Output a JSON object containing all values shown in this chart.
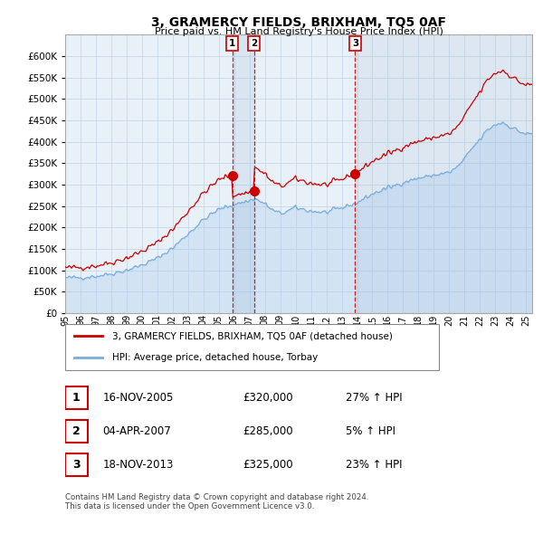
{
  "title": "3, GRAMERCY FIELDS, BRIXHAM, TQ5 0AF",
  "subtitle": "Price paid vs. HM Land Registry's House Price Index (HPI)",
  "ylim": [
    0,
    650000
  ],
  "hpi_color": "#7aadda",
  "hpi_fill_color": "#ddeeff",
  "price_color": "#cc0000",
  "transactions": [
    {
      "num": 1,
      "date": "16-NOV-2005",
      "price": 320000,
      "pct": "27%",
      "dir": "↑",
      "x_year": 2005.88
    },
    {
      "num": 2,
      "date": "04-APR-2007",
      "price": 285000,
      "pct": "5%",
      "dir": "↑",
      "x_year": 2007.29
    },
    {
      "num": 3,
      "date": "18-NOV-2013",
      "price": 325000,
      "pct": "23%",
      "dir": "↑",
      "x_year": 2013.88
    }
  ],
  "legend_label_price": "3, GRAMERCY FIELDS, BRIXHAM, TQ5 0AF (detached house)",
  "legend_label_hpi": "HPI: Average price, detached house, Torbay",
  "footer": "Contains HM Land Registry data © Crown copyright and database right 2024.\nThis data is licensed under the Open Government Licence v3.0.",
  "background_color": "#ffffff",
  "grid_color": "#c8d8e8",
  "xlim_start": 1995.0,
  "xlim_end": 2025.4,
  "xtick_labels": [
    "95",
    "96",
    "97",
    "98",
    "99",
    "00",
    "01",
    "02",
    "03",
    "04",
    "05",
    "06",
    "07",
    "08",
    "09",
    "10",
    "11",
    "12",
    "13",
    "14",
    "15",
    "16",
    "17",
    "18",
    "19",
    "20",
    "21",
    "22",
    "23",
    "24",
    "25"
  ]
}
